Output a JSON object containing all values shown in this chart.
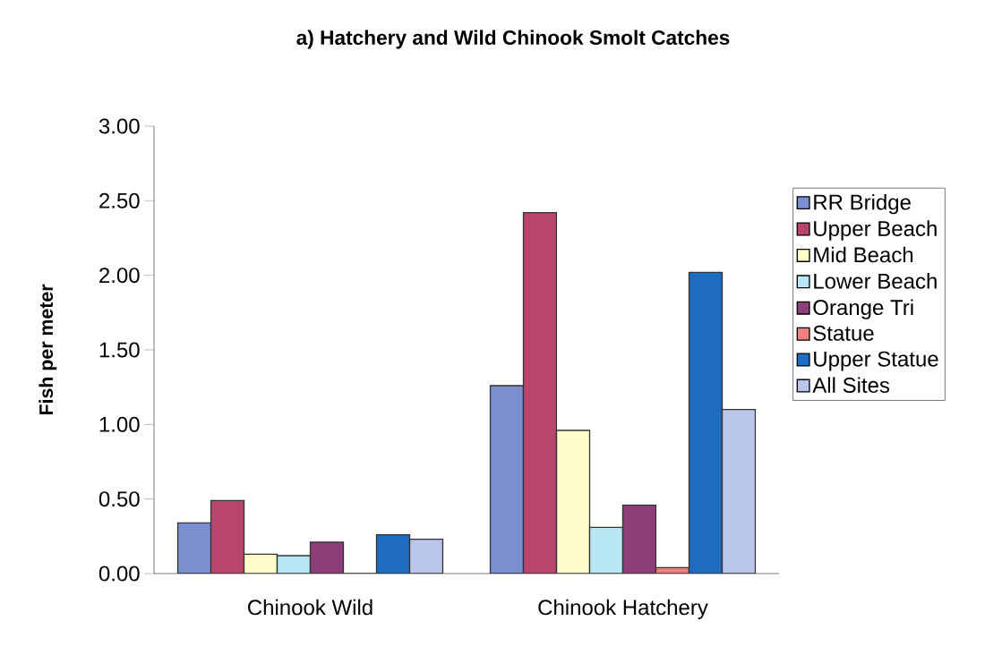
{
  "chart_data": {
    "type": "bar",
    "title": "a) Hatchery and Wild Chinook Smolt Catches",
    "ylabel": "Fish per meter",
    "categories": [
      "Chinook Wild",
      "Chinook Hatchery"
    ],
    "series": [
      {
        "name": "RR Bridge",
        "color": "#7b8fd0",
        "values": [
          0.34,
          1.26
        ]
      },
      {
        "name": "Upper Beach",
        "color": "#b8456e",
        "values": [
          0.49,
          2.42
        ]
      },
      {
        "name": "Mid Beach",
        "color": "#fefcc8",
        "values": [
          0.13,
          0.96
        ]
      },
      {
        "name": "Lower Beach",
        "color": "#b8e6f5",
        "values": [
          0.12,
          0.31
        ]
      },
      {
        "name": "Orange Tri",
        "color": "#8e3f7a",
        "values": [
          0.21,
          0.46
        ]
      },
      {
        "name": "Statue",
        "color": "#f08080",
        "values": [
          0.0,
          0.04
        ]
      },
      {
        "name": "Upper Statue",
        "color": "#1f6dc0",
        "values": [
          0.26,
          2.02
        ]
      },
      {
        "name": "All Sites",
        "color": "#b9c5ea",
        "values": [
          0.23,
          1.1
        ]
      }
    ],
    "ylim": [
      0,
      3
    ],
    "yticks": [
      {
        "value": 0,
        "label": "0.00"
      },
      {
        "value": 0.5,
        "label": "0.50"
      },
      {
        "value": 1,
        "label": "1.00"
      },
      {
        "value": 1.5,
        "label": "1.50"
      },
      {
        "value": 2,
        "label": "2.00"
      },
      {
        "value": 2.5,
        "label": "2.50"
      },
      {
        "value": 3,
        "label": "3.00"
      }
    ],
    "grid": false,
    "legend": "right"
  }
}
